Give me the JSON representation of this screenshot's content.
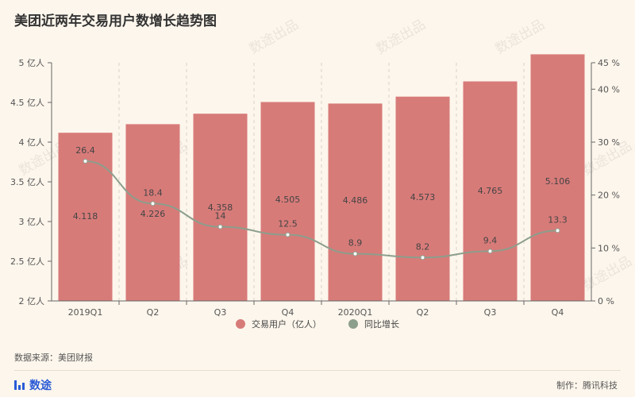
{
  "title": "美团近两年交易用户数增长趋势图",
  "source": "数据来源：美团财报",
  "producer": "制作：腾讯科技",
  "brand": {
    "name": "数途",
    "icon": "bar-chart-icon"
  },
  "watermark": "数途出品",
  "colors": {
    "bar": "#d77b79",
    "line": "#8c9e8c",
    "axis": "#666666",
    "grid": "#d9d2c7"
  },
  "chart_data": {
    "type": "bar",
    "categories": [
      "2019Q1",
      "Q2",
      "Q3",
      "Q4",
      "2020Q1",
      "Q2",
      "Q3",
      "Q4"
    ],
    "series": [
      {
        "name": "交易用户（亿人）",
        "type": "bar",
        "axis": "left",
        "values": [
          4.118,
          4.226,
          4.358,
          4.505,
          4.486,
          4.573,
          4.765,
          5.106
        ],
        "labels": [
          "4.118",
          "4.226",
          "4.358",
          "4.505",
          "4.486",
          "4.573",
          "4.765",
          "5.106"
        ]
      },
      {
        "name": "同比增长",
        "type": "line",
        "axis": "right",
        "values": [
          26.4,
          18.4,
          14,
          12.5,
          8.9,
          8.2,
          9.4,
          13.3
        ],
        "labels": [
          "26.4",
          "18.4",
          "14",
          "12.5",
          "8.9",
          "8.2",
          "9.4",
          "13.3"
        ]
      }
    ],
    "y_left": {
      "min": 2,
      "max": 5,
      "ticks": [
        2,
        2.5,
        3,
        3.5,
        4,
        4.5,
        5
      ],
      "tick_labels": [
        "2 亿人",
        "2.5 亿人",
        "3 亿人",
        "3.5 亿人",
        "4 亿人",
        "4.5 亿人",
        "5 亿人"
      ]
    },
    "y_right": {
      "min": 0,
      "max": 45,
      "ticks": [
        0,
        10,
        20,
        30,
        40,
        45
      ],
      "tick_labels": [
        "0 %",
        "10 %",
        "20 %",
        "30 %",
        "40 %",
        "45 %"
      ]
    },
    "legend": [
      {
        "label": "交易用户（亿人）",
        "color": "#d77b79"
      },
      {
        "label": "同比增长",
        "color": "#8c9e8c"
      }
    ],
    "legend_position": "bottom",
    "grid": "vertical dashed"
  }
}
